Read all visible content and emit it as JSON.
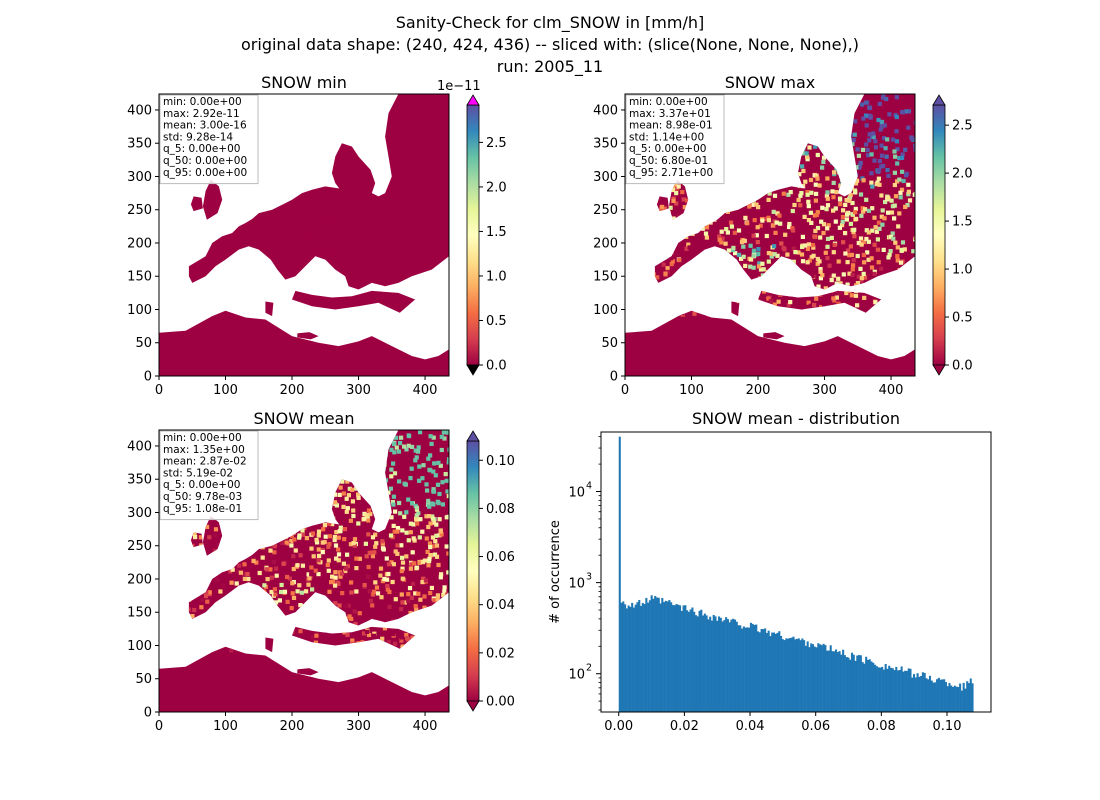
{
  "figure": {
    "title_lines": [
      "Sanity-Check for clm_SNOW in [mm/h]",
      "original data shape: (240, 424, 436) -- sliced with: (slice(None, None, None),)",
      "run: 2005_11"
    ]
  },
  "chart_data": [
    {
      "type": "heatmap",
      "title": "SNOW min",
      "xlim": [
        0,
        436
      ],
      "ylim": [
        0,
        424
      ],
      "xticks": [
        0,
        100,
        200,
        300,
        400
      ],
      "yticks": [
        0,
        50,
        100,
        150,
        200,
        250,
        300,
        350,
        400
      ],
      "colormap": "Spectral",
      "colorbar": {
        "range": [
          0,
          2.92e-11
        ],
        "ticks": [
          0.0,
          0.5,
          1.0,
          1.5,
          2.0,
          2.5
        ],
        "exponent": "1e−11",
        "extend": "both",
        "over_color": "#ff00ff",
        "under_color": "#000000"
      },
      "stats": [
        "min: 0.00e+00",
        "max: 2.92e-11",
        "mean: 3.00e-16",
        "std: 9.28e-14",
        "q_5: 0.00e+00",
        "q_50: 0.00e+00",
        "q_95: 0.00e+00"
      ]
    },
    {
      "type": "heatmap",
      "title": "SNOW max",
      "xlim": [
        0,
        436
      ],
      "ylim": [
        0,
        424
      ],
      "xticks": [
        0,
        100,
        200,
        300,
        400
      ],
      "yticks": [
        0,
        50,
        100,
        150,
        200,
        250,
        300,
        350,
        400
      ],
      "colormap": "Spectral",
      "colorbar": {
        "range": [
          0,
          2.71
        ],
        "ticks": [
          0.0,
          0.5,
          1.0,
          1.5,
          2.0,
          2.5
        ],
        "exponent": "",
        "extend": "both",
        "over_color": "#5e4fa2",
        "under_color": "#9e0142"
      },
      "stats": [
        "min: 0.00e+00",
        "max: 3.37e+01",
        "mean: 8.98e-01",
        "std: 1.14e+00",
        "q_5: 0.00e+00",
        "q_50: 6.80e-01",
        "q_95: 2.71e+00"
      ]
    },
    {
      "type": "heatmap",
      "title": "SNOW mean",
      "xlim": [
        0,
        436
      ],
      "ylim": [
        0,
        424
      ],
      "xticks": [
        0,
        100,
        200,
        300,
        400
      ],
      "yticks": [
        0,
        50,
        100,
        150,
        200,
        250,
        300,
        350,
        400
      ],
      "colormap": "Spectral",
      "colorbar": {
        "range": [
          0,
          0.108
        ],
        "ticks": [
          0.0,
          0.02,
          0.04,
          0.06,
          0.08,
          0.1
        ],
        "exponent": "",
        "extend": "both",
        "over_color": "#5e4fa2",
        "under_color": "#9e0142"
      },
      "stats": [
        "min: 0.00e+00",
        "max: 1.35e+00",
        "mean: 2.87e-02",
        "std: 5.19e-02",
        "q_5: 0.00e+00",
        "q_50: 9.78e-03",
        "q_95: 1.08e-01"
      ]
    },
    {
      "type": "bar",
      "title": "SNOW mean - distribution",
      "ylabel": "# of occurrence",
      "yscale": "log",
      "xlim": [
        -0.0054,
        0.1134
      ],
      "ylim": [
        38,
        45000
      ],
      "xticks": [
        0.0,
        0.02,
        0.04,
        0.06,
        0.08,
        0.1
      ],
      "xtick_labels": [
        "0.00",
        "0.02",
        "0.04",
        "0.06",
        "0.08",
        "0.10"
      ],
      "yticks": [
        100,
        1000,
        10000
      ],
      "ytick_labels": [
        "10",
        "10",
        "10"
      ],
      "ytick_exponents": [
        "2",
        "3",
        "4"
      ],
      "bar_color": "#1f77b4",
      "bins": 200,
      "bin_range": [
        0,
        0.108
      ],
      "peak_count": 40000,
      "profile_x": [
        0.0,
        0.0008,
        0.003,
        0.006,
        0.01,
        0.015,
        0.02,
        0.03,
        0.04,
        0.05,
        0.06,
        0.07,
        0.08,
        0.09,
        0.1,
        0.105,
        0.108
      ],
      "profile_y": [
        40000,
        650,
        560,
        580,
        660,
        600,
        520,
        410,
        330,
        260,
        210,
        160,
        125,
        100,
        80,
        72,
        85
      ]
    }
  ]
}
